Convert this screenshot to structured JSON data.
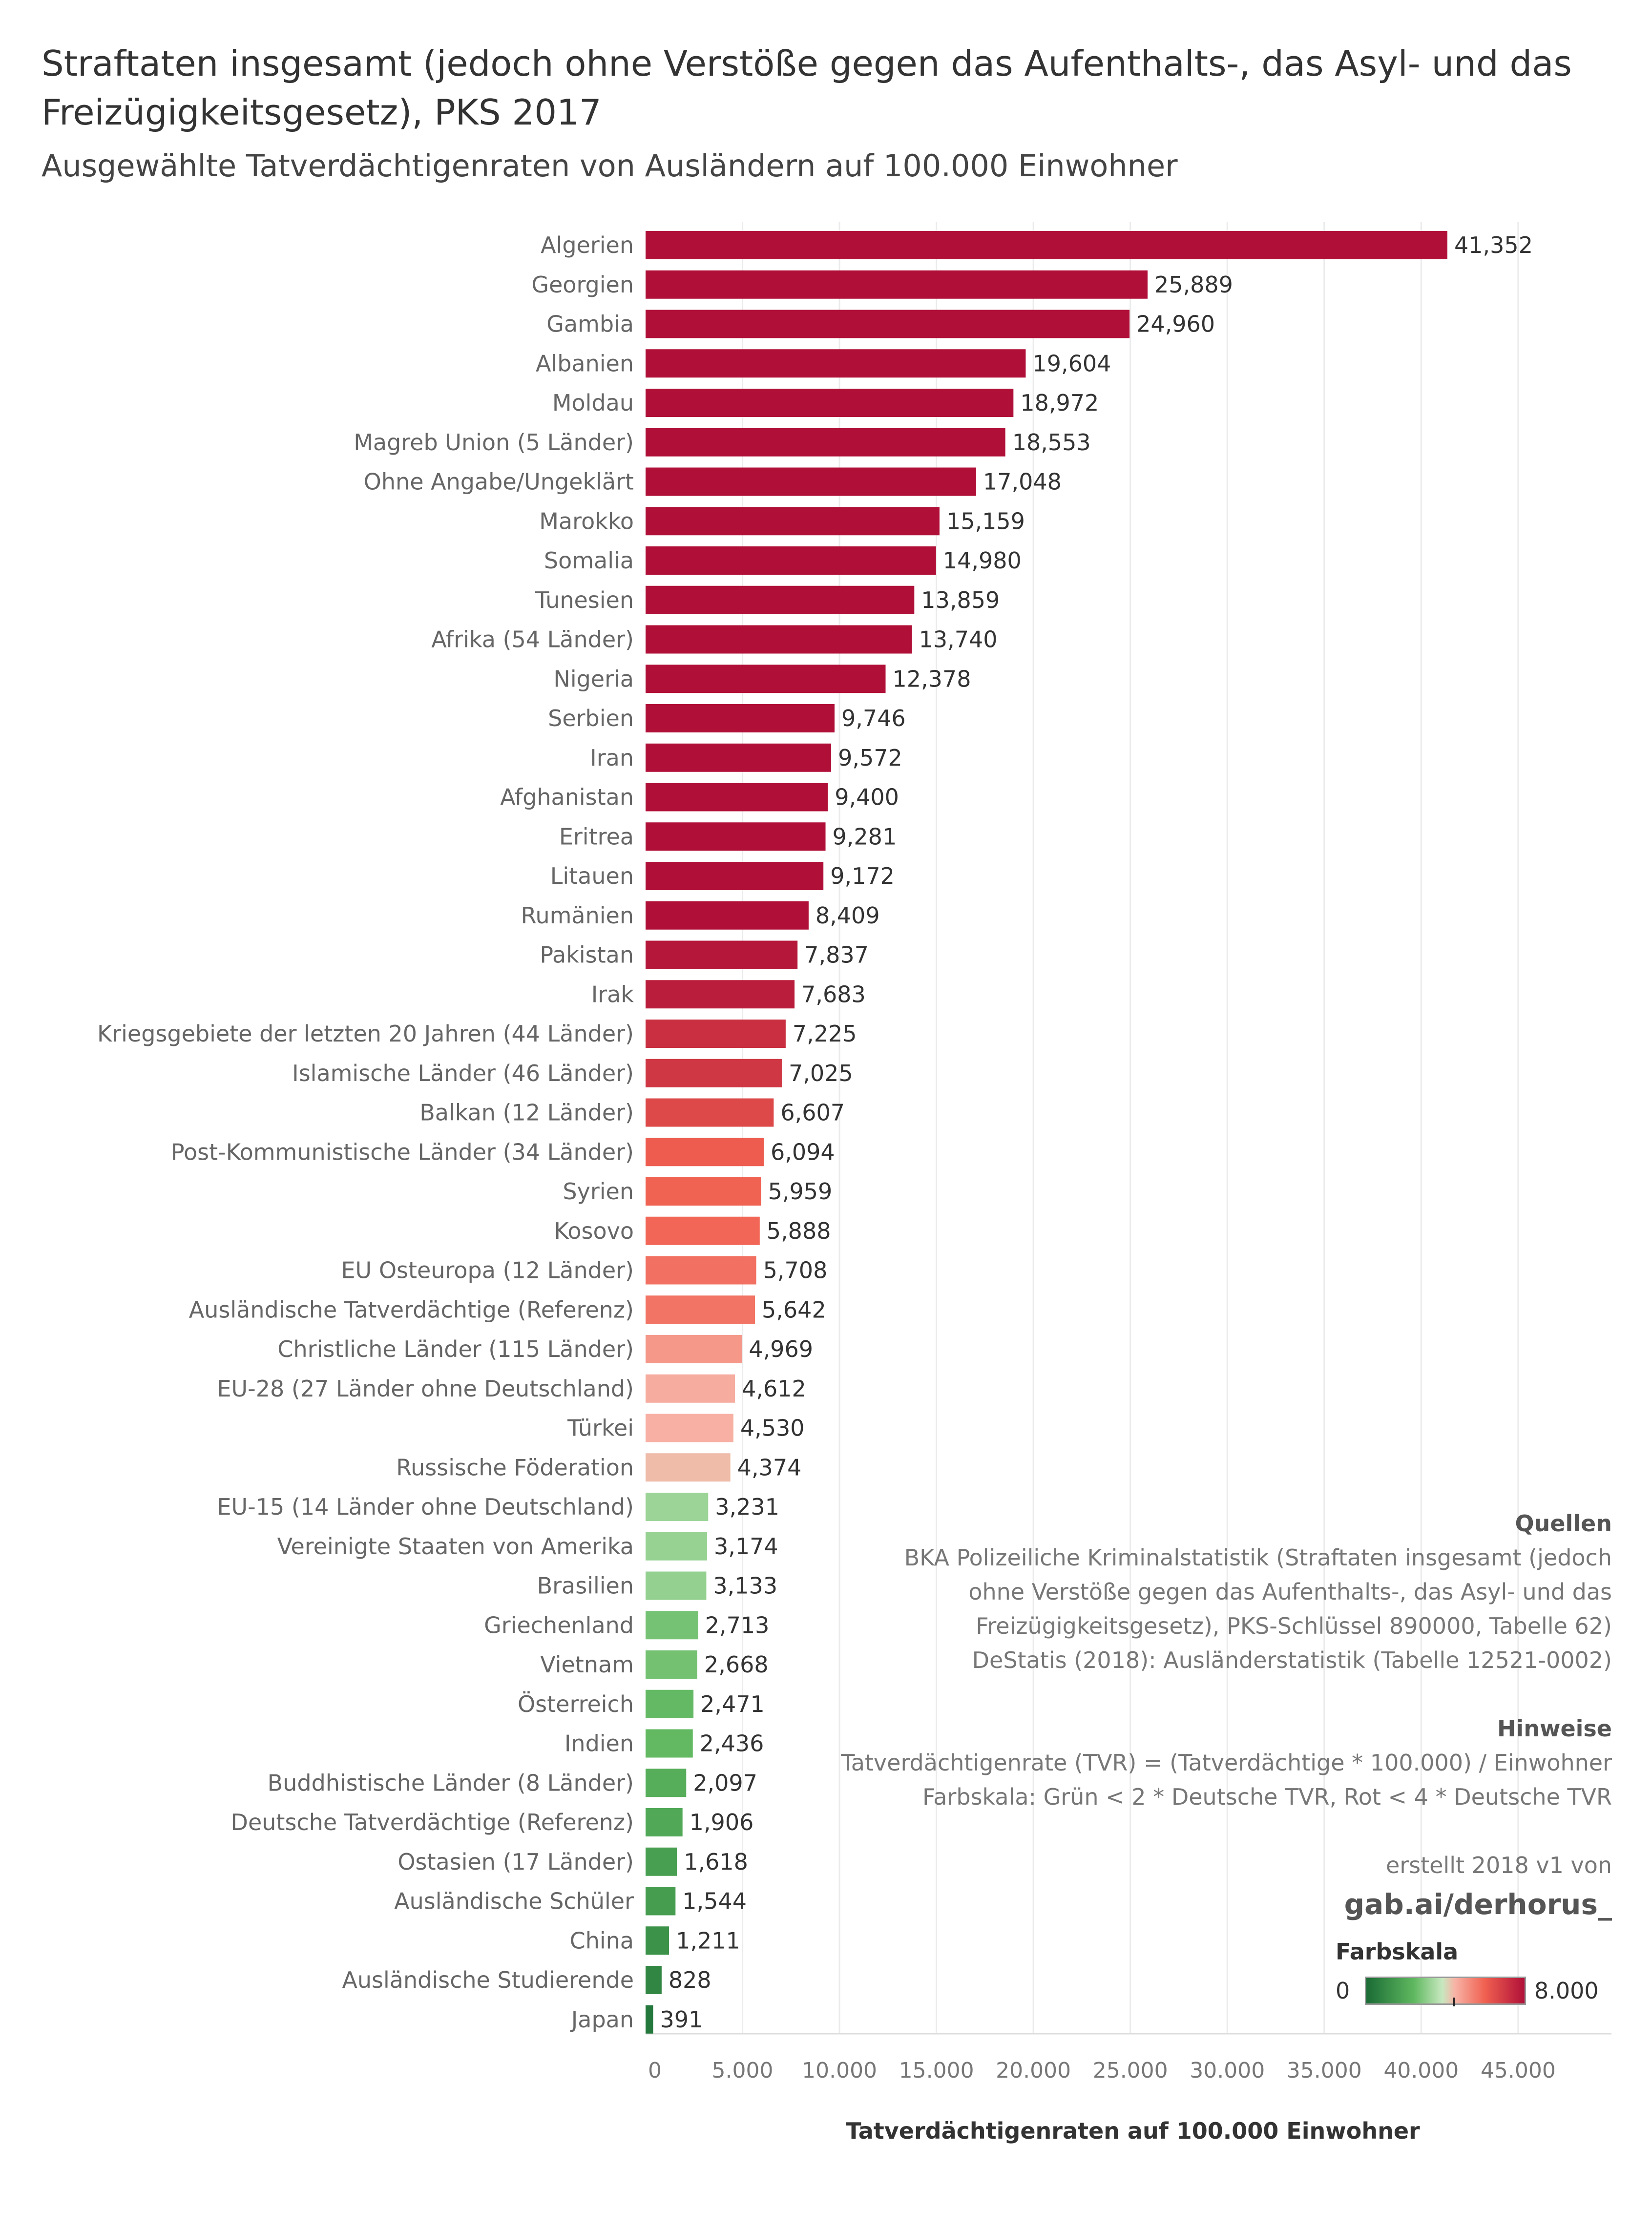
{
  "header": {
    "title": "Straftaten insgesamt (jedoch ohne Verstöße gegen das Aufenthalts-, das Asyl- und das Freizügigkeitsgesetz), PKS 2017",
    "subtitle": "Ausgewählte Tatverdächtigenraten von Ausländern auf 100.000 Einwohner"
  },
  "chart_data": {
    "type": "bar",
    "orientation": "horizontal",
    "xlabel": "Tatverdächtigenraten auf 100.000 Einwohner",
    "xlim": [
      0,
      50000
    ],
    "x_ticks": [
      0,
      5000,
      10000,
      15000,
      20000,
      25000,
      30000,
      35000,
      40000,
      45000
    ],
    "x_tick_labels": [
      "0",
      "5.000",
      "10.000",
      "15.000",
      "20.000",
      "25.000",
      "30.000",
      "35.000",
      "40.000",
      "45.000"
    ],
    "grid": "vertical",
    "categories": [
      "Algerien",
      "Georgien",
      "Gambia",
      "Albanien",
      "Moldau",
      "Magreb Union (5 Länder)",
      "Ohne Angabe/Ungeklärt",
      "Marokko",
      "Somalia",
      "Tunesien",
      "Afrika (54 Länder)",
      "Nigeria",
      "Serbien",
      "Iran",
      "Afghanistan",
      "Eritrea",
      "Litauen",
      "Rumänien",
      "Pakistan",
      "Irak",
      "Kriegsgebiete der letzten 20 Jahren (44 Länder)",
      "Islamische Länder (46 Länder)",
      "Balkan (12 Länder)",
      "Post-Kommunistische Länder (34 Länder)",
      "Syrien",
      "Kosovo",
      "EU Osteuropa (12 Länder)",
      "Ausländische Tatverdächtige (Referenz)",
      "Christliche Länder (115 Länder)",
      "EU-28 (27 Länder ohne Deutschland)",
      "Türkei",
      "Russische Föderation",
      "EU-15 (14 Länder ohne Deutschland)",
      "Vereinigte Staaten von Amerika",
      "Brasilien",
      "Griechenland",
      "Vietnam",
      "Österreich",
      "Indien",
      "Buddhistische Länder (8 Länder)",
      "Deutsche Tatverdächtige (Referenz)",
      "Ostasien (17 Länder)",
      "Ausländische Schüler",
      "China",
      "Ausländische Studierende",
      "Japan"
    ],
    "values": [
      41352,
      25889,
      24960,
      19604,
      18972,
      18553,
      17048,
      15159,
      14980,
      13859,
      13740,
      12378,
      9746,
      9572,
      9400,
      9281,
      9172,
      8409,
      7837,
      7683,
      7225,
      7025,
      6607,
      6094,
      5959,
      5888,
      5708,
      5642,
      4969,
      4612,
      4530,
      4374,
      3231,
      3174,
      3133,
      2713,
      2668,
      2471,
      2436,
      2097,
      1906,
      1618,
      1544,
      1211,
      828,
      391
    ],
    "value_labels": [
      "41,352",
      "25,889",
      "24,960",
      "19,604",
      "18,972",
      "18,553",
      "17,048",
      "15,159",
      "14,980",
      "13,859",
      "13,740",
      "12,378",
      "9,746",
      "9,572",
      "9,400",
      "9,281",
      "9,172",
      "8,409",
      "7,837",
      "7,683",
      "7,225",
      "7,025",
      "6,607",
      "6,094",
      "5,959",
      "5,888",
      "5,708",
      "5,642",
      "4,969",
      "4,612",
      "4,530",
      "4,374",
      "3,231",
      "3,174",
      "3,133",
      "2,713",
      "2,668",
      "2,471",
      "2,436",
      "2,097",
      "1,906",
      "1,618",
      "1,544",
      "1,211",
      "828",
      "391"
    ],
    "color_scale": {
      "title": "Farbskala",
      "min_label": "0",
      "max_label": "8.000",
      "min": 0,
      "max": 8000,
      "colors": [
        "#1a6b35",
        "#5fb85f",
        "#c8e8c0",
        "#f7b3a6",
        "#f06050",
        "#b01038"
      ]
    }
  },
  "notes": {
    "sources_heading": "Quellen",
    "sources": [
      "BKA Polizeiliche Kriminalstatistik (Straftaten insgesamt (jedoch",
      "ohne Verstöße gegen das Aufenthalts-, das Asyl- und das",
      "Freizügigkeitsgesetz), PKS-Schlüssel 890000, Tabelle 62)",
      "DeStatis (2018): Ausländerstatistik (Tabelle 12521-0002)"
    ],
    "hints_heading": "Hinweise",
    "hints": [
      "Tatverdächtigenrate (TVR) = (Tatverdächtige * 100.000) / Einwohner",
      "Farbskala: Grün < 2 * Deutsche TVR, Rot < 4 * Deutsche TVR"
    ],
    "credit": "erstellt 2018 v1 von",
    "author": "gab.ai/derhorus_"
  }
}
